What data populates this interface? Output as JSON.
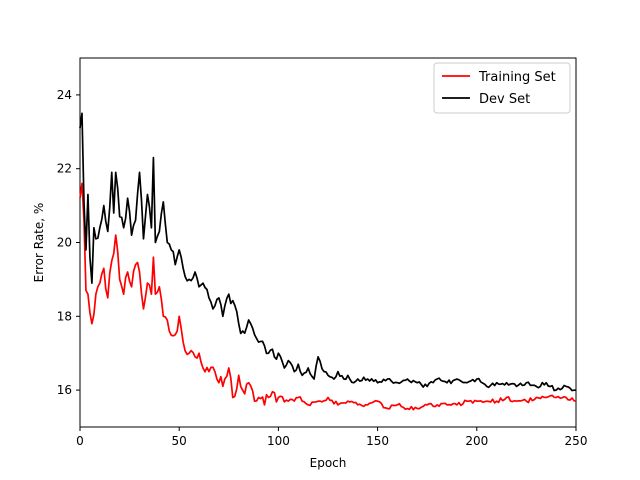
{
  "chart_data": {
    "type": "line",
    "title": "",
    "xlabel": "Epoch",
    "ylabel": "Error Rate, %",
    "xlim": [
      0,
      250
    ],
    "ylim": [
      15,
      25
    ],
    "xticks": [
      0,
      50,
      100,
      150,
      200,
      250
    ],
    "yticks": [
      16,
      18,
      20,
      22,
      24
    ],
    "grid": false,
    "legend_position": "top-right",
    "series": [
      {
        "name": "Training Set",
        "color": "#ff0000",
        "keypoints": [
          [
            0,
            21.2
          ],
          [
            1,
            21.6
          ],
          [
            2,
            20.6
          ],
          [
            3,
            18.7
          ],
          [
            4,
            18.6
          ],
          [
            5,
            18.1
          ],
          [
            6,
            17.8
          ],
          [
            8,
            18.6
          ],
          [
            10,
            18.9
          ],
          [
            12,
            19.3
          ],
          [
            14,
            18.5
          ],
          [
            16,
            19.5
          ],
          [
            17,
            19.7
          ],
          [
            18,
            20.2
          ],
          [
            20,
            19.0
          ],
          [
            22,
            18.6
          ],
          [
            24,
            19.2
          ],
          [
            26,
            18.8
          ],
          [
            28,
            19.4
          ],
          [
            30,
            19.2
          ],
          [
            32,
            18.2
          ],
          [
            34,
            18.9
          ],
          [
            36,
            18.6
          ],
          [
            37,
            19.6
          ],
          [
            38,
            18.6
          ],
          [
            40,
            18.8
          ],
          [
            42,
            18.0
          ],
          [
            45,
            17.6
          ],
          [
            48,
            17.5
          ],
          [
            50,
            18.0
          ],
          [
            52,
            17.3
          ],
          [
            55,
            17.0
          ],
          [
            58,
            16.9
          ],
          [
            60,
            17.0
          ],
          [
            62,
            16.6
          ],
          [
            65,
            16.5
          ],
          [
            68,
            16.5
          ],
          [
            70,
            16.2
          ],
          [
            73,
            16.3
          ],
          [
            75,
            16.6
          ],
          [
            77,
            15.8
          ],
          [
            80,
            16.4
          ],
          [
            83,
            15.9
          ],
          [
            85,
            16.2
          ],
          [
            88,
            15.7
          ],
          [
            90,
            15.8
          ],
          [
            93,
            15.6
          ],
          [
            95,
            15.8
          ],
          [
            100,
            15.8
          ],
          [
            105,
            15.7
          ],
          [
            110,
            15.8
          ],
          [
            115,
            15.6
          ],
          [
            120,
            15.7
          ],
          [
            125,
            15.8
          ],
          [
            130,
            15.6
          ],
          [
            135,
            15.7
          ],
          [
            140,
            15.6
          ],
          [
            145,
            15.6
          ],
          [
            150,
            15.7
          ],
          [
            155,
            15.5
          ],
          [
            160,
            15.6
          ],
          [
            165,
            15.5
          ],
          [
            170,
            15.5
          ],
          [
            175,
            15.6
          ],
          [
            180,
            15.6
          ],
          [
            185,
            15.6
          ],
          [
            190,
            15.6
          ],
          [
            195,
            15.7
          ],
          [
            200,
            15.7
          ],
          [
            205,
            15.7
          ],
          [
            210,
            15.7
          ],
          [
            215,
            15.8
          ],
          [
            220,
            15.7
          ],
          [
            225,
            15.7
          ],
          [
            230,
            15.8
          ],
          [
            235,
            15.8
          ],
          [
            240,
            15.8
          ],
          [
            245,
            15.8
          ],
          [
            250,
            15.7
          ]
        ]
      },
      {
        "name": "Dev Set",
        "color": "#000000",
        "keypoints": [
          [
            0,
            23.1
          ],
          [
            1,
            23.5
          ],
          [
            2,
            21.1
          ],
          [
            3,
            19.8
          ],
          [
            4,
            21.3
          ],
          [
            5,
            19.6
          ],
          [
            6,
            18.9
          ],
          [
            7,
            20.4
          ],
          [
            8,
            20.1
          ],
          [
            10,
            20.4
          ],
          [
            12,
            21.0
          ],
          [
            14,
            20.3
          ],
          [
            16,
            21.9
          ],
          [
            17,
            20.8
          ],
          [
            18,
            21.9
          ],
          [
            20,
            20.7
          ],
          [
            22,
            20.4
          ],
          [
            24,
            21.2
          ],
          [
            26,
            20.2
          ],
          [
            28,
            20.6
          ],
          [
            30,
            21.9
          ],
          [
            32,
            20.1
          ],
          [
            34,
            21.3
          ],
          [
            36,
            20.4
          ],
          [
            37,
            22.3
          ],
          [
            38,
            20.0
          ],
          [
            40,
            20.3
          ],
          [
            42,
            21.1
          ],
          [
            44,
            20.0
          ],
          [
            46,
            19.8
          ],
          [
            48,
            19.4
          ],
          [
            50,
            19.8
          ],
          [
            52,
            19.3
          ],
          [
            55,
            19.0
          ],
          [
            58,
            19.2
          ],
          [
            60,
            18.8
          ],
          [
            62,
            18.9
          ],
          [
            65,
            18.5
          ],
          [
            67,
            18.2
          ],
          [
            70,
            18.5
          ],
          [
            72,
            18.0
          ],
          [
            75,
            18.6
          ],
          [
            78,
            18.3
          ],
          [
            80,
            17.8
          ],
          [
            82,
            17.6
          ],
          [
            85,
            17.9
          ],
          [
            88,
            17.5
          ],
          [
            90,
            17.3
          ],
          [
            93,
            17.2
          ],
          [
            95,
            17.0
          ],
          [
            98,
            16.9
          ],
          [
            100,
            17.0
          ],
          [
            103,
            16.6
          ],
          [
            105,
            16.8
          ],
          [
            108,
            16.5
          ],
          [
            110,
            16.7
          ],
          [
            112,
            16.4
          ],
          [
            115,
            16.6
          ],
          [
            118,
            16.3
          ],
          [
            120,
            16.9
          ],
          [
            123,
            16.5
          ],
          [
            125,
            16.4
          ],
          [
            128,
            16.3
          ],
          [
            130,
            16.5
          ],
          [
            133,
            16.3
          ],
          [
            135,
            16.4
          ],
          [
            138,
            16.2
          ],
          [
            140,
            16.3
          ],
          [
            145,
            16.3
          ],
          [
            150,
            16.2
          ],
          [
            155,
            16.3
          ],
          [
            160,
            16.2
          ],
          [
            165,
            16.3
          ],
          [
            170,
            16.2
          ],
          [
            175,
            16.1
          ],
          [
            180,
            16.3
          ],
          [
            185,
            16.2
          ],
          [
            190,
            16.3
          ],
          [
            195,
            16.2
          ],
          [
            200,
            16.3
          ],
          [
            205,
            16.1
          ],
          [
            210,
            16.2
          ],
          [
            215,
            16.2
          ],
          [
            220,
            16.1
          ],
          [
            225,
            16.2
          ],
          [
            230,
            16.1
          ],
          [
            235,
            16.2
          ],
          [
            240,
            16.0
          ],
          [
            245,
            16.1
          ],
          [
            250,
            16.0
          ]
        ]
      }
    ]
  }
}
